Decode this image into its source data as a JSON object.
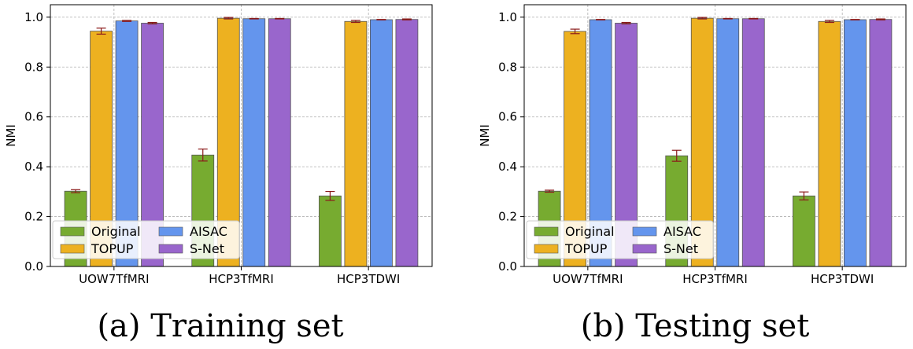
{
  "chart_data": [
    {
      "type": "bar",
      "panel_caption": "(a) Training set",
      "ylabel": "NMI",
      "ylim": [
        0,
        1.05
      ],
      "yticks": [
        "0.0",
        "0.2",
        "0.4",
        "0.6",
        "0.8",
        "1.0"
      ],
      "grid": true,
      "legend_position": "bottom-left",
      "categories": [
        "UOW7TfMRI",
        "HCP3TfMRI",
        "HCP3TDWI"
      ],
      "series": [
        {
          "name": "Original",
          "color": "#77ab30",
          "values": [
            0.302,
            0.447,
            0.283
          ],
          "errors": [
            0.006,
            0.024,
            0.018
          ]
        },
        {
          "name": "TOPUP",
          "color": "#edb120",
          "values": [
            0.944,
            0.996,
            0.983
          ],
          "errors": [
            0.012,
            0.003,
            0.004
          ]
        },
        {
          "name": "AISAC",
          "color": "#6495ed",
          "values": [
            0.985,
            0.994,
            0.99
          ],
          "errors": [
            0.002,
            0.001,
            0.001
          ]
        },
        {
          "name": "S-Net",
          "color": "#9966cc",
          "values": [
            0.976,
            0.994,
            0.991
          ],
          "errors": [
            0.003,
            0.001,
            0.002
          ]
        }
      ]
    },
    {
      "type": "bar",
      "panel_caption": "(b) Testing set",
      "ylabel": "NMI",
      "ylim": [
        0,
        1.05
      ],
      "yticks": [
        "0.0",
        "0.2",
        "0.4",
        "0.6",
        "0.8",
        "1.0"
      ],
      "grid": true,
      "legend_position": "bottom-left",
      "categories": [
        "UOW7TfMRI",
        "HCP3TfMRI",
        "HCP3TDWI"
      ],
      "series": [
        {
          "name": "Original",
          "color": "#77ab30",
          "values": [
            0.302,
            0.444,
            0.283
          ],
          "errors": [
            0.004,
            0.022,
            0.016
          ]
        },
        {
          "name": "TOPUP",
          "color": "#edb120",
          "values": [
            0.943,
            0.996,
            0.983
          ],
          "errors": [
            0.009,
            0.003,
            0.004
          ]
        },
        {
          "name": "AISAC",
          "color": "#6495ed",
          "values": [
            0.99,
            0.994,
            0.99
          ],
          "errors": [
            0.001,
            0.001,
            0.001
          ]
        },
        {
          "name": "S-Net",
          "color": "#9966cc",
          "values": [
            0.976,
            0.994,
            0.991
          ],
          "errors": [
            0.003,
            0.001,
            0.002
          ]
        }
      ]
    }
  ]
}
